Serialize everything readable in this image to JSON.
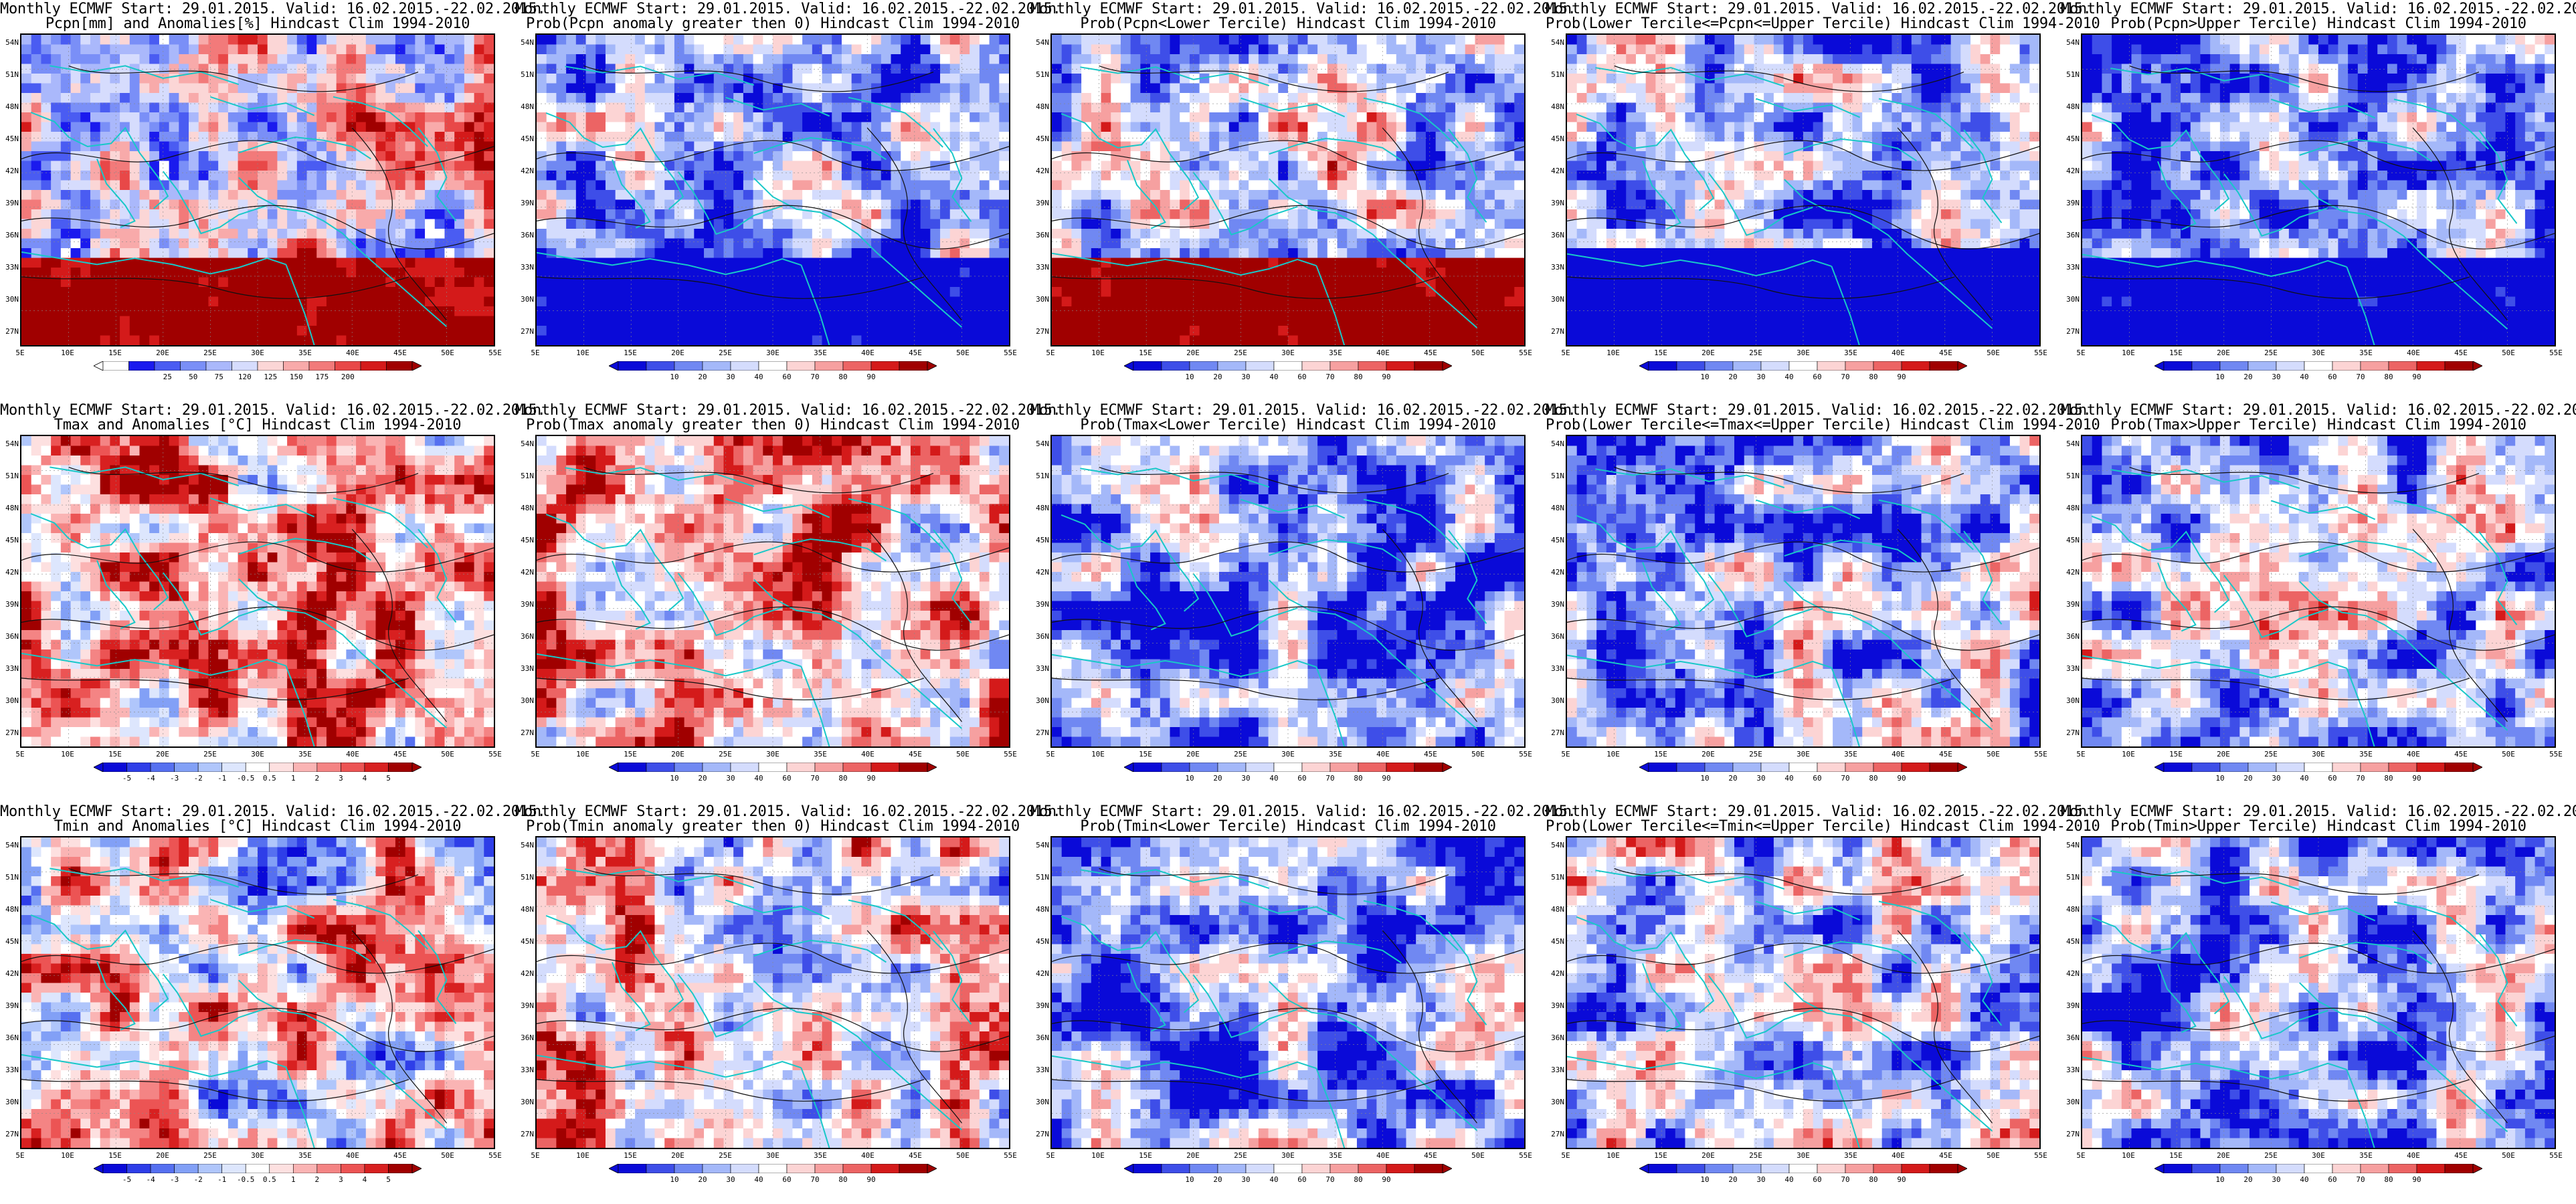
{
  "header_line": "Monthly ECMWF Start: 29.01.2015. Valid: 16.02.2015.-22.02.2015.",
  "lat_labels": [
    "54N",
    "51N",
    "48N",
    "45N",
    "42N",
    "39N",
    "36N",
    "33N",
    "30N",
    "27N"
  ],
  "lon_labels": [
    "5E",
    "10E",
    "15E",
    "20E",
    "25E",
    "30E",
    "35E",
    "40E",
    "45E",
    "50E",
    "55E"
  ],
  "colorbars": {
    "pcpn_anom": {
      "colors": [
        "#ffffff",
        "#1a1aee",
        "#4a5cf2",
        "#7a8ff7",
        "#aab8fb",
        "#d6dcfd",
        "#fbd6d6",
        "#f8aaaa",
        "#f27a7a",
        "#e84848",
        "#d41a1a",
        "#a00000"
      ],
      "labels": [
        "25",
        "50",
        "75",
        "120",
        "125",
        "150",
        "175",
        "200"
      ]
    },
    "temp_anom": {
      "colors": [
        "#0a0ad8",
        "#2e3ee8",
        "#5670f0",
        "#82a0f6",
        "#b0c6fb",
        "#dde6fd",
        "#ffffff",
        "#fde0e0",
        "#fab4b4",
        "#f48484",
        "#ec5454",
        "#d82020",
        "#a00000"
      ],
      "labels": [
        "-5",
        "-4",
        "-3",
        "-2",
        "-1",
        "-0.5",
        "0.5",
        "1",
        "2",
        "3",
        "4",
        "5"
      ]
    },
    "prob": {
      "colors": [
        "#0a0ad8",
        "#3e4ee8",
        "#7088f2",
        "#a4b8f9",
        "#d4dcfd",
        "#ffffff",
        "#fcd4d4",
        "#f6a0a0",
        "#ec6464",
        "#d41a1a",
        "#a00000"
      ],
      "labels": [
        "10",
        "20",
        "30",
        "40",
        "60",
        "70",
        "80",
        "90"
      ]
    }
  },
  "panels": [
    {
      "row": 0,
      "col": 0,
      "subtitle": "Pcpn[mm] and Anomalies[%] Hindcast Clim 1994-2010",
      "cbar": "pcpn_anom",
      "palette": "diverge",
      "bias": 0.05,
      "south": "red",
      "seed": 11
    },
    {
      "row": 0,
      "col": 1,
      "subtitle": "Prob(Pcpn anomaly greater then 0) Hindcast Clim 1994-2010",
      "cbar": "prob",
      "palette": "diverge",
      "bias": -0.35,
      "south": "blue",
      "seed": 23
    },
    {
      "row": 0,
      "col": 2,
      "subtitle": "Prob(Pcpn<Lower Tercile) Hindcast Clim 1994-2010",
      "cbar": "prob",
      "palette": "diverge",
      "bias": -0.2,
      "south": "red",
      "seed": 37
    },
    {
      "row": 0,
      "col": 3,
      "subtitle": "Prob(Lower Tercile<=Pcpn<=Upper Tercile) Hindcast Clim 1994-2010",
      "cbar": "prob",
      "palette": "diverge",
      "bias": -0.45,
      "south": "navy",
      "seed": 41
    },
    {
      "row": 0,
      "col": 4,
      "subtitle": "Prob(Pcpn>Upper Tercile) Hindcast Clim 1994-2010",
      "cbar": "prob",
      "palette": "diverge",
      "bias": -0.4,
      "south": "blue",
      "seed": 53
    },
    {
      "row": 1,
      "col": 0,
      "subtitle": "Tmax and Anomalies [°C] Hindcast Clim 1994-2010",
      "cbar": "temp_anom",
      "palette": "diverge",
      "bias": 0.35,
      "south": "none",
      "seed": 61
    },
    {
      "row": 1,
      "col": 1,
      "subtitle": "Prob(Tmax anomaly greater then 0) Hindcast Clim 1994-2010",
      "cbar": "prob",
      "palette": "diverge",
      "bias": 0.35,
      "south": "none",
      "seed": 71
    },
    {
      "row": 1,
      "col": 2,
      "subtitle": "Prob(Tmax<Lower Tercile) Hindcast Clim 1994-2010",
      "cbar": "prob",
      "palette": "diverge",
      "bias": -0.55,
      "south": "none",
      "seed": 83
    },
    {
      "row": 1,
      "col": 3,
      "subtitle": "Prob(Lower Tercile<=Tmax<=Upper Tercile) Hindcast Clim 1994-2010",
      "cbar": "prob",
      "palette": "diverge",
      "bias": -0.3,
      "south": "none",
      "seed": 97
    },
    {
      "row": 1,
      "col": 4,
      "subtitle": "Prob(Tmax>Upper Tercile) Hindcast Clim 1994-2010",
      "cbar": "prob",
      "palette": "diverge",
      "bias": -0.45,
      "south": "none",
      "seed": 103
    },
    {
      "row": 2,
      "col": 0,
      "subtitle": "Tmin and Anomalies [°C] Hindcast Clim 1994-2010",
      "cbar": "temp_anom",
      "palette": "diverge",
      "bias": 0.15,
      "south": "none",
      "seed": 113
    },
    {
      "row": 2,
      "col": 1,
      "subtitle": "Prob(Tmin anomaly greater then 0) Hindcast Clim 1994-2010",
      "cbar": "prob",
      "palette": "diverge",
      "bias": 0.15,
      "south": "none",
      "seed": 127
    },
    {
      "row": 2,
      "col": 2,
      "subtitle": "Prob(Tmin<Lower Tercile) Hindcast Clim 1994-2010",
      "cbar": "prob",
      "palette": "diverge",
      "bias": -0.5,
      "south": "none",
      "seed": 131
    },
    {
      "row": 2,
      "col": 3,
      "subtitle": "Prob(Lower Tercile<=Tmin<=Upper Tercile) Hindcast Clim 1994-2010",
      "cbar": "prob",
      "palette": "diverge",
      "bias": -0.25,
      "south": "none",
      "seed": 139
    },
    {
      "row": 2,
      "col": 4,
      "subtitle": "Prob(Tmin>Upper Tercile) Hindcast Clim 1994-2010",
      "cbar": "prob",
      "palette": "diverge",
      "bias": -0.45,
      "south": "none",
      "seed": 149
    }
  ]
}
